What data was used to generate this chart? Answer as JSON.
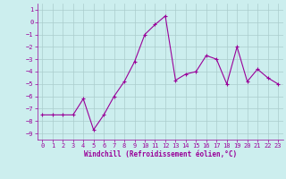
{
  "x": [
    0,
    1,
    2,
    3,
    4,
    5,
    6,
    7,
    8,
    9,
    10,
    11,
    12,
    13,
    14,
    15,
    16,
    17,
    18,
    19,
    20,
    21,
    22,
    23
  ],
  "y": [
    -7.5,
    -7.5,
    -7.5,
    -7.5,
    -6.2,
    -8.7,
    -7.5,
    -6.0,
    -4.8,
    -3.2,
    -1.0,
    -0.2,
    0.5,
    -4.7,
    -4.2,
    -4.0,
    -2.7,
    -3.0,
    -5.0,
    -2.0,
    -4.8,
    -3.8,
    -4.5,
    -5.0
  ],
  "line_color": "#990099",
  "marker": "+",
  "marker_size": 3,
  "marker_linewidth": 0.8,
  "line_width": 0.8,
  "bg_color": "#cceeee",
  "grid_color": "#aacccc",
  "xlabel": "Windchill (Refroidissement éolien,°C)",
  "xlabel_color": "#990099",
  "tick_color": "#990099",
  "spine_color": "#990099",
  "ylim": [
    -9.5,
    1.5
  ],
  "xlim": [
    -0.5,
    23.5
  ],
  "yticks": [
    1,
    0,
    -1,
    -2,
    -3,
    -4,
    -5,
    -6,
    -7,
    -8,
    -9
  ],
  "xticks": [
    0,
    1,
    2,
    3,
    4,
    5,
    6,
    7,
    8,
    9,
    10,
    11,
    12,
    13,
    14,
    15,
    16,
    17,
    18,
    19,
    20,
    21,
    22,
    23
  ],
  "tick_fontsize": 5.0,
  "xlabel_fontsize": 5.5,
  "figsize": [
    3.2,
    2.0
  ],
  "dpi": 100
}
